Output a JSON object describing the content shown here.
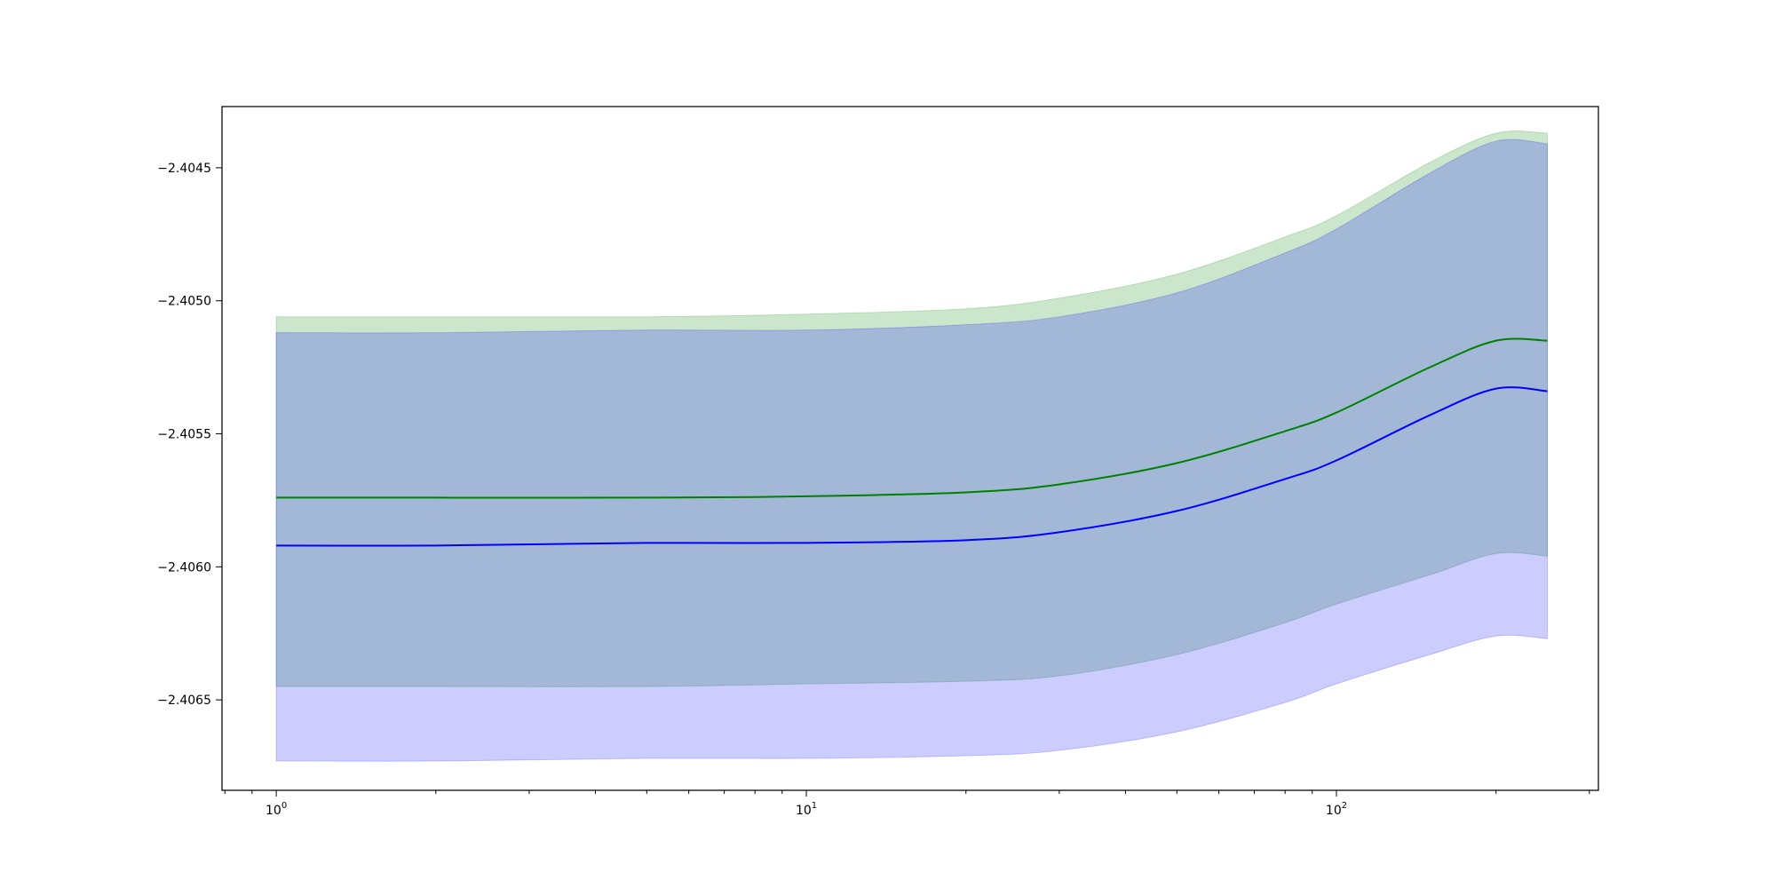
{
  "chart_data": {
    "type": "area",
    "title": "",
    "xlabel": "",
    "ylabel": "",
    "x_scale": "log",
    "xlim": [
      0.79,
      312
    ],
    "ylim": [
      -2.40684,
      -2.40427
    ],
    "grid": false,
    "legend": "none",
    "x_ticks": [
      {
        "value": 1,
        "base": "10",
        "exp": "0"
      },
      {
        "value": 10,
        "base": "10",
        "exp": "1"
      },
      {
        "value": 100,
        "base": "10",
        "exp": "2"
      }
    ],
    "y_ticks": [
      {
        "value": -2.4045,
        "label": "−2.4045"
      },
      {
        "value": -2.405,
        "label": "−2.4050"
      },
      {
        "value": -2.4055,
        "label": "−2.4055"
      },
      {
        "value": -2.406,
        "label": "−2.4060"
      },
      {
        "value": -2.4065,
        "label": "−2.4065"
      }
    ],
    "x": [
      1,
      2,
      5,
      10,
      20,
      30,
      50,
      80,
      100,
      150,
      200,
      250
    ],
    "series": [
      {
        "color": "#008000",
        "band_color": "#008000",
        "band_opacity": 0.2,
        "mean": [
          -2.40574,
          -2.40574,
          -2.40574,
          -2.405735,
          -2.40572,
          -2.40569,
          -2.40561,
          -2.40549,
          -2.40542,
          -2.40525,
          -2.40515,
          -2.40515
        ],
        "upper": [
          -2.40506,
          -2.40506,
          -2.40506,
          -2.40505,
          -2.40503,
          -2.40499,
          -2.4049,
          -2.40476,
          -2.40468,
          -2.40448,
          -2.40437,
          -2.40437
        ],
        "lower": [
          -2.40645,
          -2.40645,
          -2.40645,
          -2.40644,
          -2.40643,
          -2.40641,
          -2.40633,
          -2.40621,
          -2.40614,
          -2.40603,
          -2.40595,
          -2.40596
        ]
      },
      {
        "color": "#0000ff",
        "band_color": "#0000ff",
        "band_opacity": 0.2,
        "mean": [
          -2.40592,
          -2.40592,
          -2.40591,
          -2.40591,
          -2.4059,
          -2.40587,
          -2.40579,
          -2.40567,
          -2.4056,
          -2.40543,
          -2.40533,
          -2.40534
        ],
        "upper": [
          -2.40512,
          -2.40512,
          -2.40511,
          -2.40511,
          -2.40509,
          -2.40506,
          -2.40497,
          -2.40482,
          -2.40473,
          -2.40452,
          -2.4044,
          -2.40441
        ],
        "lower": [
          -2.40673,
          -2.40673,
          -2.40672,
          -2.40672,
          -2.40671,
          -2.40669,
          -2.40662,
          -2.40651,
          -2.40644,
          -2.40633,
          -2.40626,
          -2.40627
        ]
      }
    ]
  }
}
